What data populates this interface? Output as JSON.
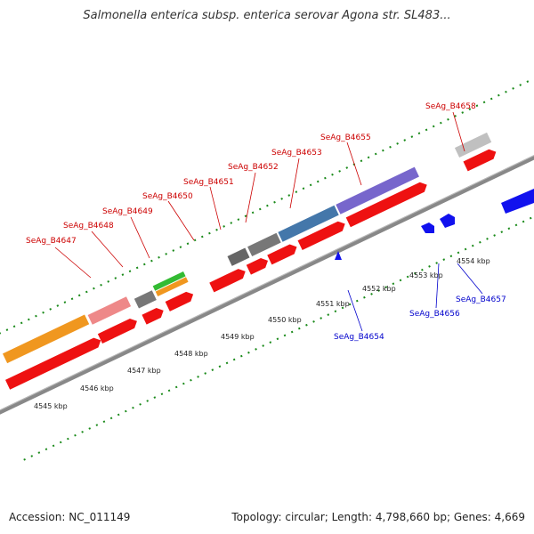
{
  "title": "Salmonella enterica subsp. enterica serovar Agona str. SL483...",
  "footer": {
    "accession": "Accession: NC_011149",
    "summary": "Topology: circular; Length: 4,798,660 bp; Genes: 4,669"
  },
  "genes_forward": [
    "SeAg_B4647",
    "SeAg_B4648",
    "SeAg_B4649",
    "SeAg_B4650",
    "SeAg_B4651",
    "SeAg_B4652",
    "SeAg_B4653",
    "SeAg_B4655",
    "SeAg_B4658"
  ],
  "genes_reverse": [
    "SeAg_B4654",
    "SeAg_B4656",
    "SeAg_B4657"
  ],
  "kbp_labels": [
    "4545 kbp",
    "4546 kbp",
    "4547 kbp",
    "4548 kbp",
    "4549 kbp",
    "4550 kbp",
    "4551 kbp",
    "4552 kbp",
    "4553 kbp",
    "4554 kbp"
  ],
  "colors": {
    "forward_label": "#cc0000",
    "reverse_label": "#0000cc",
    "cds_forward": "#ee1111",
    "cds_reverse": "#1111ee",
    "backbone": "#888888"
  }
}
